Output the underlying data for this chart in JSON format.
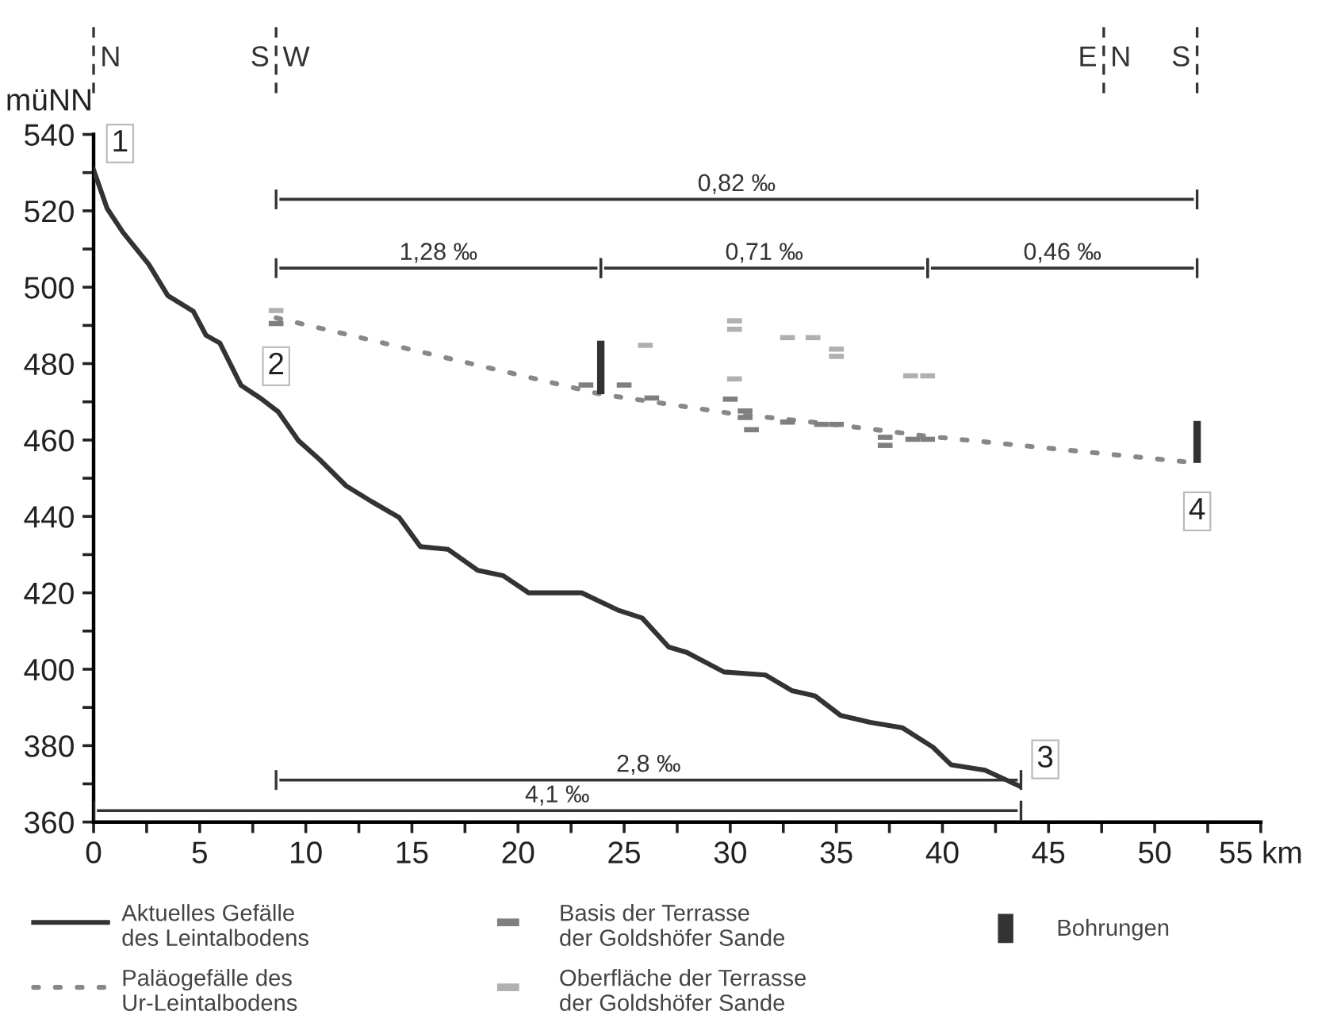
{
  "chart_data": {
    "type": "line",
    "ylabel": "müNN",
    "xlim": [
      0,
      55
    ],
    "ylim": [
      360,
      540
    ],
    "xticks": [
      0,
      {
        "value": 2.5,
        "label": null
      },
      5,
      {
        "value": 7.5,
        "label": null
      },
      10,
      {
        "value": 12.5,
        "label": null
      },
      15,
      {
        "value": 17.5,
        "label": null
      },
      20,
      {
        "value": 22.5,
        "label": null
      },
      25,
      {
        "value": 27.5,
        "label": null
      },
      30,
      {
        "value": 32.5,
        "label": null
      },
      35,
      {
        "value": 37.5,
        "label": null
      },
      40,
      {
        "value": 42.5,
        "label": null
      },
      45,
      {
        "value": 47.5,
        "label": null
      },
      50,
      {
        "value": 52.5,
        "label": null
      },
      {
        "value": 55,
        "label": "55 km"
      }
    ],
    "yticks": [
      360,
      {
        "value": 370,
        "label": null
      },
      380,
      {
        "value": 390,
        "label": null
      },
      400,
      {
        "value": 410,
        "label": null
      },
      420,
      {
        "value": 430,
        "label": null
      },
      440,
      {
        "value": 450,
        "label": null
      },
      460,
      {
        "value": 470,
        "label": null
      },
      480,
      {
        "value": 490,
        "label": null
      },
      500,
      {
        "value": 510,
        "label": null
      },
      520,
      {
        "value": 530,
        "label": null
      },
      540
    ],
    "grid": false,
    "legend": "bottom",
    "series": [
      {
        "name": "Aktuelles Gefälle\ndes Leintalbodens",
        "color": "#333333",
        "line_style": "solid",
        "x": [
          0,
          0.64,
          1.38,
          2.6,
          3.5,
          4.7,
          5.3,
          5.95,
          6.95,
          7.9,
          8.7,
          9.66,
          10.65,
          11.9,
          13.1,
          14.4,
          15.4,
          16.7,
          18.1,
          19.3,
          20.5,
          23,
          24.7,
          25.85,
          27.1,
          27.95,
          29.7,
          31.65,
          32.9,
          34,
          35.2,
          36.6,
          38.1,
          39.55,
          40.4,
          42,
          43.6
        ],
        "values": [
          530.7,
          520.6,
          514.4,
          506,
          497.8,
          493.7,
          487.4,
          485.4,
          474.3,
          470.8,
          467.4,
          459.8,
          454.9,
          448,
          443.9,
          439.7,
          432.1,
          431.4,
          425.9,
          424.5,
          420,
          420,
          415.5,
          413.4,
          405.8,
          404.4,
          399.3,
          398.5,
          394.4,
          393,
          387.9,
          386.1,
          384.7,
          379.6,
          375,
          373.6,
          369.5
        ]
      },
      {
        "name": "Paläogefälle des\nUr-Leintalbodens",
        "color": "#888888",
        "line_style": "dotted",
        "x": [
          8.6,
          23.9,
          30,
          35,
          39.3,
          52
        ],
        "values": [
          492,
          472,
          467,
          464,
          461,
          454
        ]
      },
      {
        "name": "Basis der Terrasse\nder Goldshöfer Sande",
        "type": "scatter",
        "color": "#7f7f7f",
        "marker": "square",
        "x": [
          8.6,
          23.2,
          25.0,
          26.3,
          30.0,
          30.7,
          30.7,
          31.0,
          32.7,
          34.3,
          35.0,
          37.3,
          37.3,
          38.6,
          39.3
        ],
        "values": [
          490.5,
          474.4,
          474.4,
          471.0,
          470.7,
          467.6,
          465.9,
          462.7,
          464.7,
          464.1,
          464.1,
          460.7,
          458.6,
          460.2,
          460.2
        ]
      },
      {
        "name": "Oberfläche der Terrasse\nder Goldshöfer Sande",
        "type": "scatter",
        "color": "#b0b0b0",
        "marker": "square",
        "x": [
          8.6,
          26.0,
          30.2,
          30.2,
          30.2,
          32.7,
          33.9,
          35.0,
          35.0,
          38.5,
          39.3
        ],
        "values": [
          493.9,
          484.8,
          491.2,
          489.0,
          476.0,
          486.8,
          486.8,
          483.8,
          481.9,
          476.8,
          476.8
        ]
      },
      {
        "name": "Bohrungen",
        "type": "bar",
        "color": "#333333",
        "x": [
          23.9,
          52
        ],
        "base": [
          472,
          454
        ],
        "values": [
          14,
          11
        ]
      },
      {
        "name": "0,82 ‰",
        "color": "#333333",
        "x": [
          8.6,
          52
        ],
        "values": [
          523,
          523
        ]
      },
      {
        "name": "1,28 ‰",
        "color": "#333333",
        "x": [
          8.6,
          23.9
        ],
        "values": [
          505,
          505
        ]
      },
      {
        "name": "0,71 ‰",
        "color": "#333333",
        "x": [
          23.9,
          39.3
        ],
        "values": [
          505,
          505
        ]
      },
      {
        "name": "0,46 ‰",
        "color": "#333333",
        "x": [
          39.3,
          52
        ],
        "values": [
          505,
          505
        ]
      },
      {
        "name": "2,8 ‰",
        "color": "#333333",
        "x": [
          8.6,
          43.7
        ],
        "values": [
          371,
          371
        ]
      },
      {
        "name": "4,1 ‰",
        "color": "#333333",
        "x": [
          0,
          43.7
        ],
        "values": [
          363,
          363
        ]
      }
    ],
    "ref_lines": [
      {
        "axis": "x",
        "value": 0,
        "label": "N",
        "line_style": "dashed",
        "color": "#333333"
      },
      {
        "axis": "x",
        "value": 8.6,
        "label": "S W",
        "line_style": "dashed",
        "color": "#333333"
      },
      {
        "axis": "x",
        "value": 47.6,
        "label": "E N",
        "line_style": "dashed",
        "color": "#333333"
      },
      {
        "axis": "x",
        "value": 52,
        "label": "S",
        "line_style": "dashed",
        "color": "#333333"
      }
    ],
    "annotations": [
      {
        "text": "1",
        "x": 0,
        "y": 530.7
      },
      {
        "text": "2",
        "x": 8.6,
        "y": 492
      },
      {
        "text": "3",
        "x": 43.6,
        "y": 369.5
      },
      {
        "text": "4",
        "x": 52,
        "y": 454
      }
    ]
  }
}
